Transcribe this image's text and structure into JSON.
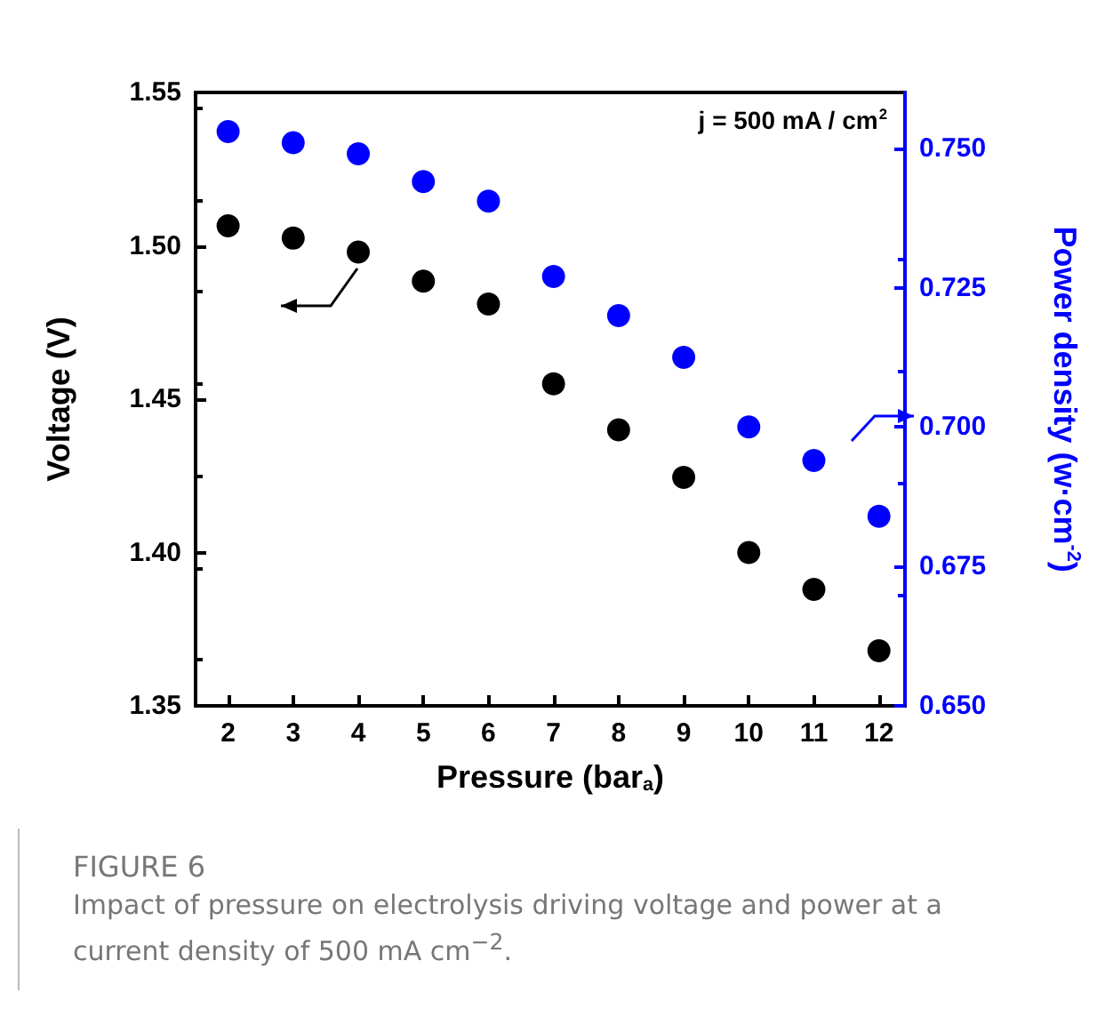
{
  "chart_data": {
    "type": "scatter",
    "xlabel": "Pressure (bar$_{a}$)",
    "ylabel": "Voltage (V)",
    "y2label": "Power density (w·cm$^{-2}$)",
    "x": [
      2,
      3,
      4,
      5,
      6,
      7,
      8,
      9,
      10,
      11,
      12
    ],
    "series": [
      {
        "color": "#000000",
        "values": [
          1.5065,
          1.5025,
          1.498,
          1.4885,
          1.481,
          1.455,
          1.44,
          1.4245,
          1.4,
          1.388,
          1.368
        ]
      },
      {
        "color": "#0000ff",
        "axis": "y2",
        "values": [
          0.753,
          0.751,
          0.749,
          0.744,
          0.7405,
          0.727,
          0.72,
          0.7125,
          0.7,
          0.694,
          0.684
        ]
      }
    ],
    "xlim": [
      1.5,
      12.4
    ],
    "xticks": [
      2,
      3,
      4,
      5,
      6,
      7,
      8,
      9,
      10,
      11,
      12
    ],
    "ylim": [
      1.35,
      1.55
    ],
    "yticks": [
      1.35,
      {
        "value": 1.4,
        "label": "1.40"
      },
      1.45,
      {
        "value": 1.5,
        "label": "1.50"
      },
      1.55
    ],
    "y2lim": [
      0.65,
      0.76
    ],
    "y2ticks": [
      {
        "value": 0.65,
        "label": "0.650"
      },
      0.675,
      {
        "value": 0.7,
        "label": "0.700"
      },
      0.725,
      {
        "value": 0.75,
        "label": "0.750"
      }
    ],
    "marker": "circle",
    "grid": false,
    "annotations": [
      "j = 500 mA / cm$^{2}$",
      "FIGURE 6",
      "Impact of pressure on electrolysis driving voltage and power at a current density of 500 mA cm$^{−2}$."
    ]
  }
}
